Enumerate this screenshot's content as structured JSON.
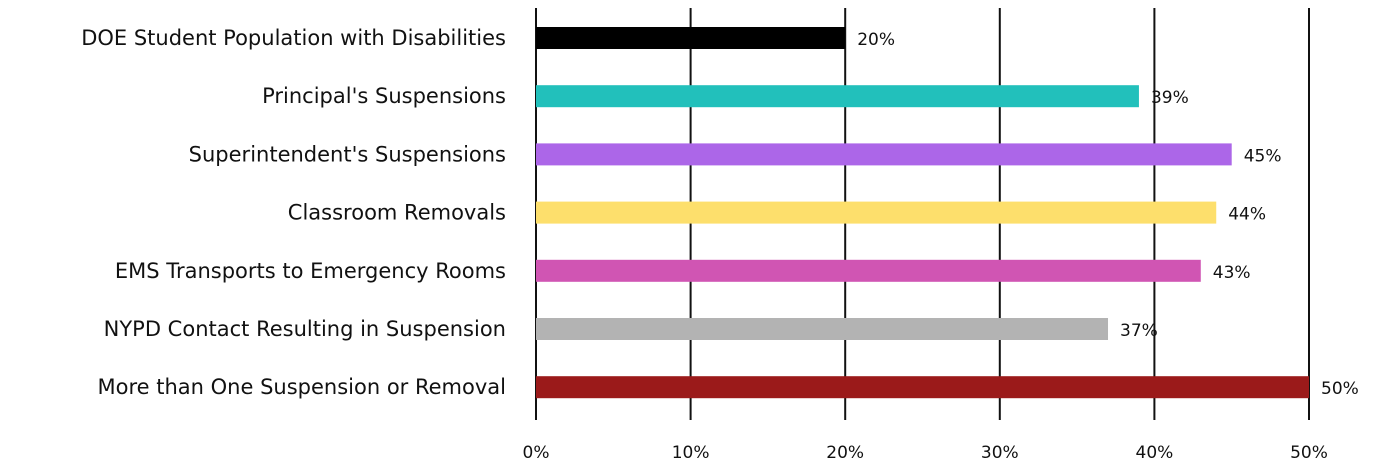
{
  "chart_data": {
    "type": "bar",
    "orientation": "horizontal",
    "categories": [
      "DOE Student Population with Disabilities",
      "Principal's Suspensions",
      "Superintendent's Suspensions",
      "Classroom Removals",
      "EMS Transports to Emergency Rooms",
      "NYPD Contact Resulting in Suspension",
      "More than One Suspension or Removal"
    ],
    "values": [
      20,
      39,
      45,
      44,
      43,
      37,
      50
    ],
    "value_labels": [
      "20%",
      "39%",
      "45%",
      "44%",
      "43%",
      "37%",
      "50%"
    ],
    "colors": [
      "#000000",
      "#22c0bb",
      "#ac66e8",
      "#fddf6c",
      "#d055b3",
      "#b3b3b3",
      "#9b1a1a"
    ],
    "xlim": [
      0,
      50
    ],
    "x_ticks": [
      0,
      10,
      20,
      30,
      40,
      50
    ],
    "x_tick_labels": [
      "0%",
      "10%",
      "20%",
      "30%",
      "40%",
      "50%"
    ],
    "grid": true,
    "legend": "none",
    "title": "",
    "xlabel": "",
    "ylabel": ""
  }
}
